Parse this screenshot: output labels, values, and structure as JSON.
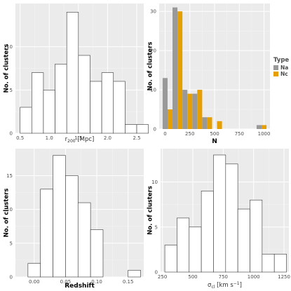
{
  "chart_data": [
    {
      "type": "bar",
      "title": "",
      "xlabel_main": "r",
      "xlabel_sub": "200",
      "xlabel_rest": " [Mpc]",
      "ylabel": "No. of clusters",
      "xlim": [
        0.42,
        2.62
      ],
      "ylim": [
        0,
        15
      ],
      "xticks": [
        0.5,
        1.0,
        1.5,
        2.0,
        2.5
      ],
      "xtick_labels": [
        "0.5",
        "1.0",
        "1.5",
        "2.0",
        "2.5"
      ],
      "yticks": [
        0,
        5,
        10
      ],
      "ytick_labels": [
        "0",
        "5",
        "10"
      ],
      "bins": [
        {
          "x0": 0.5,
          "x1": 0.7,
          "value": 3
        },
        {
          "x0": 0.7,
          "x1": 0.9,
          "value": 7
        },
        {
          "x0": 0.9,
          "x1": 1.1,
          "value": 5
        },
        {
          "x0": 1.1,
          "x1": 1.3,
          "value": 8
        },
        {
          "x0": 1.3,
          "x1": 1.5,
          "value": 14
        },
        {
          "x0": 1.5,
          "x1": 1.7,
          "value": 9
        },
        {
          "x0": 1.7,
          "x1": 1.9,
          "value": 6
        },
        {
          "x0": 1.9,
          "x1": 2.1,
          "value": 7
        },
        {
          "x0": 2.1,
          "x1": 2.3,
          "value": 6
        },
        {
          "x0": 2.3,
          "x1": 2.5,
          "value": 1
        },
        {
          "x0": 2.5,
          "x1": 2.7,
          "value": 1
        }
      ]
    },
    {
      "type": "bar",
      "title": "",
      "xlabel": "N",
      "ylabel": "No. of clusters",
      "xlim": [
        -60,
        1060
      ],
      "ylim": [
        0,
        32
      ],
      "xticks": [
        0,
        250,
        500,
        750,
        1000
      ],
      "xtick_labels": [
        "0",
        "250",
        "500",
        "750",
        "1000"
      ],
      "yticks": [
        0,
        10,
        20,
        30
      ],
      "ytick_labels": [
        "0",
        "10",
        "20",
        "30"
      ],
      "legend": {
        "title": "Type",
        "placement": "right",
        "entries": [
          {
            "name": "Na",
            "color": "#999999"
          },
          {
            "name": "Nc",
            "color": "#E69F00"
          }
        ]
      },
      "bin_width": 50,
      "series": [
        {
          "name": "Na",
          "color": "#999999",
          "bins": [
            {
              "x0": -25,
              "value": 13
            },
            {
              "x0": 75,
              "value": 31
            },
            {
              "x0": 175,
              "value": 10
            },
            {
              "x0": 275,
              "value": 9
            },
            {
              "x0": 375,
              "value": 3
            },
            {
              "x0": 925,
              "value": 1
            }
          ]
        },
        {
          "name": "Nc",
          "color": "#E69F00",
          "bins": [
            {
              "x0": 25,
              "value": 5
            },
            {
              "x0": 125,
              "value": 30
            },
            {
              "x0": 225,
              "value": 9
            },
            {
              "x0": 325,
              "value": 10
            },
            {
              "x0": 425,
              "value": 3
            },
            {
              "x0": 525,
              "value": 2
            },
            {
              "x0": 975,
              "value": 1
            }
          ]
        }
      ]
    },
    {
      "type": "bar",
      "title": "",
      "xlabel": "Redshift",
      "ylabel": "No. of clusters",
      "xlim": [
        -0.03,
        0.175
      ],
      "ylim": [
        0,
        19
      ],
      "xticks": [
        0.0,
        0.05,
        0.1,
        0.15
      ],
      "xtick_labels": [
        "0.00",
        "0.05",
        "0.10",
        "0.15"
      ],
      "yticks": [
        0,
        5,
        10,
        15
      ],
      "ytick_labels": [
        "0",
        "5",
        "10",
        "15"
      ],
      "bins": [
        {
          "x0": -0.01,
          "x1": 0.01,
          "value": 2
        },
        {
          "x0": 0.01,
          "x1": 0.03,
          "value": 13
        },
        {
          "x0": 0.03,
          "x1": 0.05,
          "value": 18
        },
        {
          "x0": 0.05,
          "x1": 0.07,
          "value": 15
        },
        {
          "x0": 0.07,
          "x1": 0.09,
          "value": 11
        },
        {
          "x0": 0.09,
          "x1": 0.11,
          "value": 7
        },
        {
          "x0": 0.11,
          "x1": 0.13,
          "value": 0
        },
        {
          "x0": 0.13,
          "x1": 0.15,
          "value": 0
        },
        {
          "x0": 0.15,
          "x1": 0.17,
          "value": 1
        }
      ]
    },
    {
      "type": "bar",
      "title": "",
      "xlabel_main": "σ",
      "xlabel_sub": "cl",
      "xlabel_rest": " [km s",
      "xlabel_sup": "−1",
      "xlabel_close": "]",
      "ylabel": "No. of clusters",
      "xlim": [
        235,
        1290
      ],
      "ylim": [
        0,
        13.7
      ],
      "xticks": [
        250,
        500,
        750,
        1000,
        1250
      ],
      "xtick_labels": [
        "250",
        "500",
        "750",
        "1000",
        "1250"
      ],
      "yticks": [
        0,
        5,
        10
      ],
      "ytick_labels": [
        "0",
        "5",
        "10"
      ],
      "bins": [
        {
          "x0": 270,
          "x1": 370,
          "value": 3
        },
        {
          "x0": 370,
          "x1": 470,
          "value": 6
        },
        {
          "x0": 470,
          "x1": 570,
          "value": 5
        },
        {
          "x0": 570,
          "x1": 670,
          "value": 9
        },
        {
          "x0": 670,
          "x1": 770,
          "value": 13
        },
        {
          "x0": 770,
          "x1": 870,
          "value": 12
        },
        {
          "x0": 870,
          "x1": 970,
          "value": 7
        },
        {
          "x0": 970,
          "x1": 1070,
          "value": 8
        },
        {
          "x0": 1070,
          "x1": 1170,
          "value": 2
        },
        {
          "x0": 1170,
          "x1": 1270,
          "value": 2
        }
      ]
    }
  ]
}
